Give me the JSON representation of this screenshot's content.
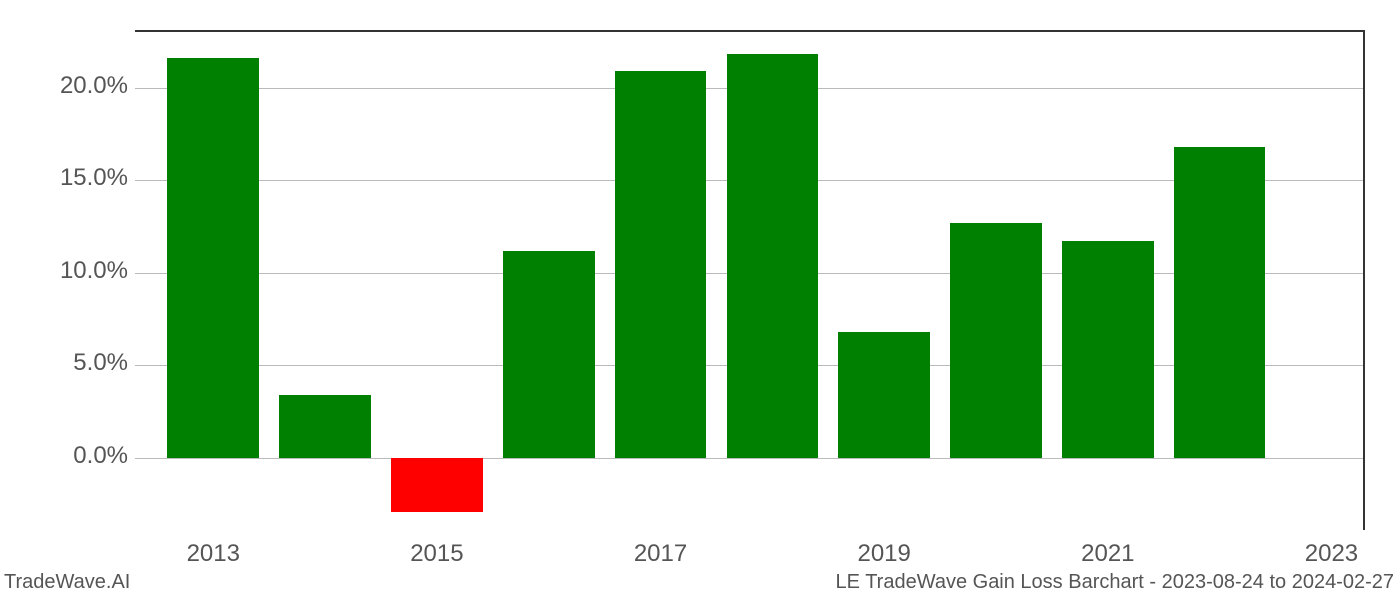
{
  "chart": {
    "type": "bar",
    "years": [
      2013,
      2014,
      2015,
      2016,
      2017,
      2018,
      2019,
      2020,
      2021,
      2022
    ],
    "values": [
      21.6,
      3.4,
      -2.9,
      11.2,
      20.9,
      21.8,
      6.8,
      12.7,
      11.7,
      16.8
    ],
    "bar_colors": [
      "#008000",
      "#008000",
      "#ff0000",
      "#008000",
      "#008000",
      "#008000",
      "#008000",
      "#008000",
      "#008000",
      "#008000"
    ],
    "ylim": [
      -4,
      23
    ],
    "y_ticks": [
      0,
      5,
      10,
      15,
      20
    ],
    "y_tick_labels": [
      "0.0%",
      "5.0%",
      "10.0%",
      "15.0%",
      "20.0%"
    ],
    "x_ticks": [
      2013,
      2015,
      2017,
      2019,
      2021,
      2023
    ],
    "x_tick_labels": [
      "2013",
      "2015",
      "2017",
      "2019",
      "2021",
      "2023"
    ],
    "xlim": [
      2012.3,
      2023.3
    ],
    "bar_width": 0.82,
    "background_color": "#ffffff",
    "grid_color": "#bbbbbb",
    "axis_label_color": "#555555",
    "axis_label_fontsize": 24
  },
  "footer": {
    "left": "TradeWave.AI",
    "right": "LE TradeWave Gain Loss Barchart - 2023-08-24 to 2024-02-27"
  }
}
